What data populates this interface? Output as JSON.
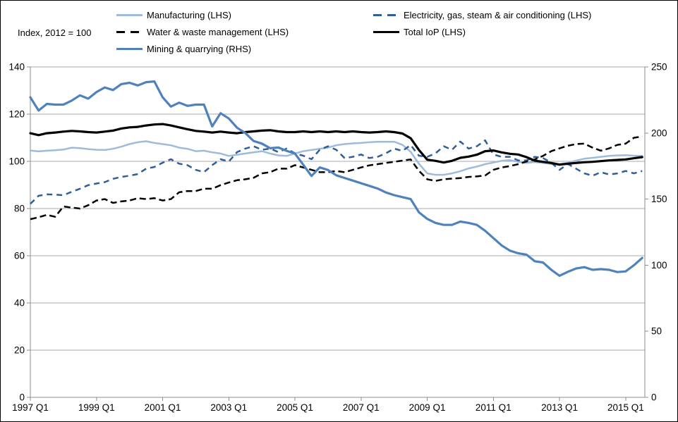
{
  "note": "Index, 2012 = 100",
  "colors": {
    "manufacturing": "#9DBBDC",
    "electricity": "#2F5F96",
    "water": "#000000",
    "total_iop": "#000000",
    "mining": "#4F81BD",
    "gridline": "#A9A9A9",
    "axis": "#8C8C8C",
    "text": "#000000"
  },
  "chart_data": {
    "type": "line",
    "title": "",
    "x_range": {
      "start": "1997 Q1",
      "end": "2015 Q3",
      "freq": "quarterly",
      "count": 75
    },
    "x_tick_labels": [
      "1997 Q1",
      "1999 Q1",
      "2001 Q1",
      "2003 Q1",
      "2005 Q1",
      "2007 Q1",
      "2009 Q1",
      "2011 Q1",
      "2013 Q1",
      "2015 Q1"
    ],
    "x_tick_indices": [
      0,
      8,
      16,
      24,
      32,
      40,
      48,
      56,
      64,
      72
    ],
    "left_axis": {
      "label": "Index, 2012 = 100",
      "min": 0,
      "max": 140,
      "step": 20,
      "ticks": [
        0,
        20,
        40,
        60,
        80,
        100,
        120,
        140
      ]
    },
    "right_axis": {
      "min": 0,
      "max": 250,
      "step": 50,
      "ticks": [
        0,
        50,
        100,
        150,
        200,
        250
      ]
    },
    "grid": "horizontal",
    "legend_position": "top",
    "series": [
      {
        "key": "manufacturing",
        "name": "Manufacturing (LHS)",
        "axis": "left",
        "style": "solid",
        "color": "#9DBBDC",
        "width": 2.5,
        "values": [
          104.6,
          104.2,
          104.5,
          104.7,
          105.0,
          105.8,
          105.6,
          105.2,
          104.9,
          104.8,
          105.3,
          106.2,
          107.3,
          108.1,
          108.5,
          107.8,
          107.3,
          106.8,
          105.8,
          105.3,
          104.3,
          104.5,
          103.8,
          103.3,
          102.3,
          102.8,
          103.3,
          103.8,
          104.3,
          103.3,
          102.5,
          102.3,
          103.3,
          104.3,
          104.8,
          105.3,
          105.8,
          106.8,
          107.3,
          107.6,
          107.8,
          108.1,
          108.3,
          108.3,
          108.3,
          107.0,
          104.0,
          99.0,
          94.9,
          94.3,
          94.3,
          94.9,
          95.8,
          97.0,
          97.8,
          98.8,
          99.5,
          100.2,
          100.5,
          99.8,
          99.3,
          99.7,
          99.3,
          98.9,
          98.9,
          99.3,
          100.3,
          101.1,
          101.5,
          101.9,
          102.3,
          102.5,
          102.6,
          102.4,
          102.3
        ]
      },
      {
        "key": "electricity",
        "name": "Electricity, gas, steam & air conditioning (LHS)",
        "axis": "left",
        "style": "dashed",
        "color": "#2F5F96",
        "width": 2.5,
        "values": [
          82.0,
          85.4,
          86.0,
          85.9,
          85.6,
          87.1,
          88.4,
          89.9,
          90.6,
          91.2,
          92.6,
          93.4,
          93.9,
          94.6,
          96.9,
          97.6,
          99.4,
          100.9,
          99.0,
          98.4,
          96.4,
          95.4,
          98.4,
          100.9,
          99.9,
          103.9,
          105.4,
          106.4,
          104.9,
          105.4,
          103.9,
          105.4,
          103.4,
          102.4,
          100.9,
          104.9,
          106.4,
          104.9,
          101.4,
          101.9,
          102.9,
          101.4,
          101.9,
          103.4,
          105.4,
          104.4,
          106.9,
          102.4,
          101.9,
          103.4,
          106.4,
          104.9,
          108.4,
          105.4,
          106.4,
          108.9,
          102.9,
          101.9,
          101.9,
          100.4,
          100.4,
          101.9,
          101.4,
          99.4,
          96.4,
          98.9,
          96.9,
          94.9,
          93.9,
          95.4,
          94.4,
          94.9,
          95.9,
          94.9,
          95.9
        ]
      },
      {
        "key": "water",
        "name": "Water & waste management (LHS)",
        "axis": "left",
        "style": "dashed",
        "color": "#000000",
        "width": 2.5,
        "values": [
          75.5,
          76.3,
          77.3,
          76.5,
          80.9,
          80.4,
          80.0,
          81.4,
          83.4,
          84.0,
          82.4,
          83.0,
          83.4,
          84.4,
          84.0,
          84.4,
          83.4,
          84.0,
          86.9,
          87.4,
          87.4,
          88.4,
          88.4,
          89.9,
          91.0,
          92.0,
          92.4,
          93.0,
          94.9,
          95.4,
          96.9,
          96.9,
          98.4,
          97.4,
          96.4,
          95.4,
          95.4,
          95.9,
          95.4,
          96.4,
          97.4,
          98.3,
          98.8,
          99.3,
          99.8,
          100.3,
          100.8,
          96.0,
          92.4,
          91.7,
          92.4,
          92.7,
          92.9,
          93.4,
          93.6,
          94.0,
          96.4,
          97.4,
          98.0,
          98.8,
          99.9,
          100.8,
          102.3,
          104.3,
          105.5,
          106.6,
          107.3,
          107.5,
          105.8,
          104.5,
          105.5,
          107.0,
          107.5,
          110.0,
          110.5
        ]
      },
      {
        "key": "total-iop",
        "name": "Total IoP (LHS)",
        "axis": "left",
        "style": "solid",
        "color": "#000000",
        "width": 3.2,
        "values": [
          111.9,
          111.1,
          111.9,
          112.2,
          112.6,
          112.9,
          112.7,
          112.4,
          112.2,
          112.6,
          113.0,
          113.9,
          114.4,
          114.6,
          115.2,
          115.6,
          115.8,
          115.2,
          114.4,
          113.6,
          112.9,
          112.6,
          112.2,
          112.6,
          112.2,
          111.9,
          112.4,
          112.7,
          113.0,
          113.2,
          112.7,
          112.4,
          112.4,
          112.7,
          112.4,
          112.7,
          112.4,
          112.7,
          112.4,
          112.7,
          112.4,
          112.2,
          112.4,
          112.7,
          112.4,
          111.8,
          109.8,
          104.8,
          100.7,
          100.2,
          99.5,
          100.2,
          101.5,
          102.0,
          102.8,
          104.3,
          104.6,
          103.8,
          103.2,
          102.9,
          101.8,
          100.3,
          99.8,
          99.3,
          98.6,
          99.0,
          99.3,
          99.6,
          99.8,
          100.1,
          100.4,
          100.6,
          100.8,
          101.3,
          101.8
        ]
      },
      {
        "key": "mining",
        "name": "Mining & quarrying (RHS)",
        "axis": "right",
        "style": "solid",
        "color": "#4F81BD",
        "width": 3.2,
        "values": [
          227,
          217,
          222,
          221.5,
          221.5,
          224.5,
          228.5,
          226,
          231,
          234.5,
          232.5,
          237,
          238,
          236,
          238.5,
          239,
          227,
          220,
          223,
          220.5,
          221.5,
          221.5,
          205,
          215,
          211,
          204,
          200,
          194,
          192,
          188.5,
          189,
          186.5,
          184.5,
          176,
          167.5,
          174,
          172,
          168,
          166,
          164,
          162,
          160,
          158,
          155,
          153,
          151.5,
          150,
          140,
          135,
          132,
          130.5,
          130.5,
          133,
          132,
          130.5,
          126,
          120.5,
          115,
          111,
          109,
          108,
          103,
          102,
          96.5,
          92,
          95,
          97.5,
          98.5,
          96.5,
          97,
          96.5,
          94.8,
          95.3,
          100,
          105.5
        ]
      }
    ],
    "legend_items": [
      {
        "series": 0,
        "col": 0,
        "row": 0
      },
      {
        "series": 1,
        "col": 1,
        "row": 0
      },
      {
        "series": 2,
        "col": 0,
        "row": 1
      },
      {
        "series": 3,
        "col": 1,
        "row": 1
      },
      {
        "series": 4,
        "col": 0,
        "row": 2
      }
    ]
  }
}
